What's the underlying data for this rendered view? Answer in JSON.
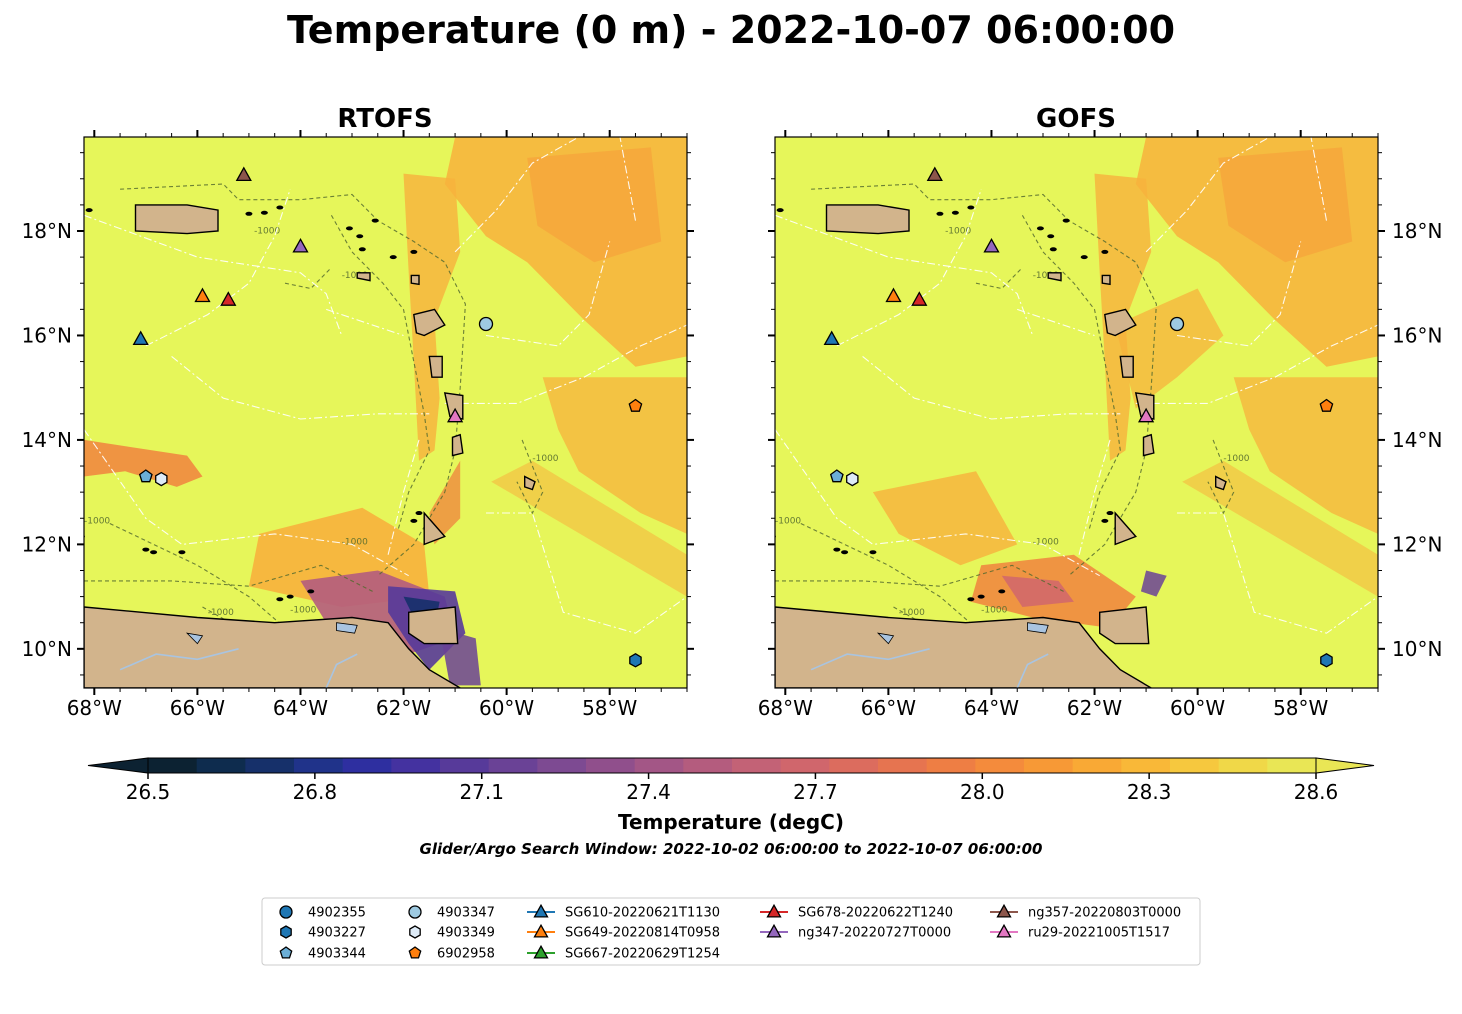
{
  "figure": {
    "title": "Temperature (0 m) - 2022-10-07 06:00:00",
    "subtitle": "Glider/Argo Search Window: 2022-10-02 06:00:00 to 2022-10-07 06:00:00"
  },
  "colors": {
    "land": "#d2b48c",
    "sea_base": "#e6f65a",
    "lakes": "#a9c4e0",
    "contour": "#556b2f",
    "eez": "#ffffff"
  },
  "panels": [
    {
      "title": "RTOFS",
      "model": "rtofs"
    },
    {
      "title": "GOFS",
      "model": "gofs"
    }
  ],
  "map": {
    "lon_range": [
      -68.2,
      -56.5
    ],
    "lat_range": [
      9.25,
      19.8
    ],
    "lon_ticks": [
      -68,
      -66,
      -64,
      -62,
      -60,
      -58
    ],
    "lat_ticks": [
      10,
      12,
      14,
      16,
      18
    ],
    "lon_tick_labels": [
      "68°W",
      "66°W",
      "64°W",
      "62°W",
      "60°W",
      "58°W"
    ],
    "lat_tick_labels": [
      "10°N",
      "12°N",
      "14°N",
      "16°N",
      "18°N"
    ],
    "bathymetry_label": "-1000"
  },
  "colorbar": {
    "label": "Temperature (degC)",
    "min": 26.5,
    "max": 28.6,
    "ticks": [
      "26.5",
      "26.8",
      "27.1",
      "27.4",
      "27.7",
      "28.0",
      "28.3",
      "28.6"
    ],
    "colors": [
      "#0c2232",
      "#0e2c4e",
      "#16306a",
      "#20338a",
      "#2e2fa0",
      "#4432a0",
      "#573a9a",
      "#6a4296",
      "#7d4a92",
      "#904f8c",
      "#a35686",
      "#b45c7e",
      "#c36276",
      "#d0666c",
      "#dc6c5e",
      "#e67450",
      "#ee7e44",
      "#f48b3c",
      "#f79936",
      "#f9a935",
      "#f9b838",
      "#f6c83e",
      "#f0d848",
      "#e9e655"
    ]
  },
  "observations": [
    {
      "id": "4902355",
      "platform": "argo",
      "marker": "circle",
      "color": "#1f77b4",
      "lon": null,
      "lat": null
    },
    {
      "id": "4903227",
      "platform": "argo",
      "marker": "hexagon",
      "color": "#1f77b4",
      "lon": -57.5,
      "lat": 9.78
    },
    {
      "id": "4903344",
      "platform": "argo",
      "marker": "pentagon",
      "color": "#6baed6",
      "lon": -67.0,
      "lat": 13.3
    },
    {
      "id": "4903347",
      "platform": "argo",
      "marker": "circle",
      "color": "#9ecae1",
      "lon": -60.4,
      "lat": 16.22
    },
    {
      "id": "4903349",
      "platform": "argo",
      "marker": "hexagon",
      "color": "#deebf7",
      "lon": -66.7,
      "lat": 13.25
    },
    {
      "id": "6902958",
      "platform": "argo",
      "marker": "pentagon",
      "color": "#ff7f0e",
      "lon": -57.5,
      "lat": 14.65
    },
    {
      "id": "SG610-20220621T1130",
      "platform": "glider",
      "marker": "triangle",
      "color": "#1f77b4",
      "lon": -67.1,
      "lat": 15.93
    },
    {
      "id": "SG649-20220814T0958",
      "platform": "glider",
      "marker": "triangle",
      "color": "#ff7f0e",
      "lon": -65.9,
      "lat": 16.75
    },
    {
      "id": "SG667-20220629T1254",
      "platform": "glider",
      "marker": "triangle",
      "color": "#2ca02c",
      "lon": null,
      "lat": null
    },
    {
      "id": "SG678-20220622T1240",
      "platform": "glider",
      "marker": "triangle",
      "color": "#d62728",
      "lon": -65.4,
      "lat": 16.68
    },
    {
      "id": "ng347-20220727T0000",
      "platform": "glider",
      "marker": "triangle",
      "color": "#9467bd",
      "lon": -64.0,
      "lat": 17.7
    },
    {
      "id": "ng357-20220803T0000",
      "platform": "glider",
      "marker": "triangle",
      "color": "#8c564b",
      "lon": -65.1,
      "lat": 19.07
    },
    {
      "id": "ru29-20221005T1517",
      "platform": "glider",
      "marker": "triangle",
      "color": "#e377c2",
      "lon": -61.0,
      "lat": 14.45
    }
  ],
  "legend_columns": [
    [
      "4902355",
      "4903227",
      "4903344"
    ],
    [
      "4903347",
      "4903349",
      "6902958"
    ],
    [
      "SG610-20220621T1130",
      "SG649-20220814T0958",
      "SG667-20220629T1254"
    ],
    [
      "SG678-20220622T1240",
      "ng347-20220727T0000"
    ],
    [
      "ng357-20220803T0000",
      "ru29-20221005T1517"
    ]
  ]
}
